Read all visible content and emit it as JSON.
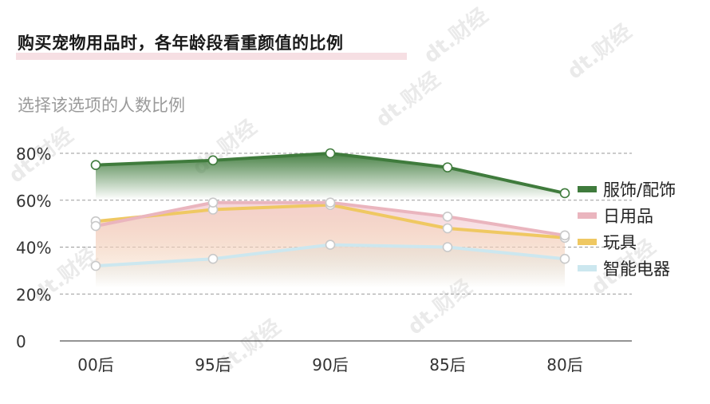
{
  "title": "购买宠物用品时，各年龄段看重颜值的比例",
  "subtitle": "选择该选项的人数比例",
  "watermark": "dt.财经",
  "chart_data": {
    "type": "line",
    "title": "购买宠物用品时，各年龄段看重颜值的比例",
    "subtitle": "选择该选项的人数比例",
    "categories": [
      "00后",
      "95后",
      "90后",
      "85后",
      "80后"
    ],
    "yticks": [
      "80%",
      "60%",
      "40%",
      "20%",
      "0"
    ],
    "ylim": [
      0,
      80
    ],
    "grid": "horizontal-dashed",
    "legend_position": "right",
    "series": [
      {
        "name": "服饰/配饰",
        "values": [
          75,
          77,
          80,
          74,
          63
        ],
        "color": "#3f7b3c",
        "fill": "#3f7b3c"
      },
      {
        "name": "日用品",
        "values": [
          49,
          59,
          59,
          53,
          45
        ],
        "color": "#eab5be",
        "fill": "#f3cdd3"
      },
      {
        "name": "玩具",
        "values": [
          51,
          56,
          58,
          48,
          44
        ],
        "color": "#efc862",
        "fill": "#f4d999"
      },
      {
        "name": "智能电器",
        "values": [
          32,
          35,
          41,
          40,
          35
        ],
        "color": "#cce7ef",
        "fill": "#d9edf3"
      }
    ]
  }
}
